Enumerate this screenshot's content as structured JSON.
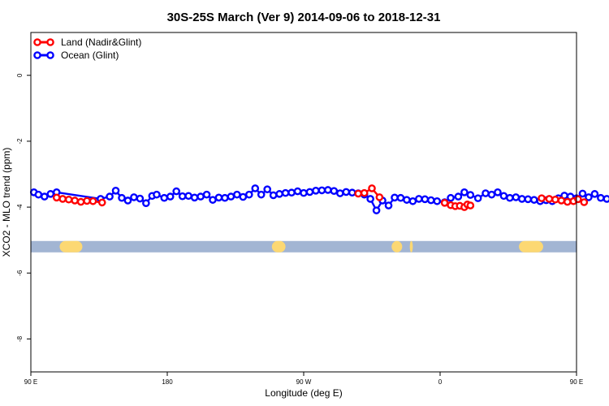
{
  "chart_data": {
    "type": "line",
    "title": "30S-25S March (Ver 9)   2014-09-06 to 2018-12-31",
    "xlabel": "Longitude (deg E)",
    "ylabel": "XCO2 - MLO trend (ppm)",
    "xlim": [
      90,
      450
    ],
    "ylim": [
      -9,
      1.3
    ],
    "x_ticks": [
      {
        "value": 90,
        "label": "90 E"
      },
      {
        "value": 180,
        "label": "180"
      },
      {
        "value": 270,
        "label": "90 W"
      },
      {
        "value": 360,
        "label": "0"
      },
      {
        "value": 450,
        "label": "90 E"
      },
      {
        "value": 540,
        "label": "180"
      }
    ],
    "y_ticks": [
      {
        "value": 0,
        "label": "0"
      },
      {
        "value": -2,
        "label": "-2"
      },
      {
        "value": -4,
        "label": "-4"
      },
      {
        "value": -6,
        "label": "-6"
      },
      {
        "value": -8,
        "label": "-8"
      }
    ],
    "legend": {
      "position": "top-left"
    },
    "colors": {
      "land": "#ff0000",
      "ocean": "#0000ff",
      "band_ocean": "#a2b5d3",
      "band_land": "#fcd873"
    },
    "land_mask_band": {
      "y": -5.2,
      "land_segments": [
        [
          109,
          124
        ],
        [
          249,
          258
        ],
        [
          328,
          335
        ],
        [
          340,
          342
        ],
        [
          412,
          428
        ]
      ]
    },
    "series": [
      {
        "name": "Land (Nadir&Glint)",
        "color": "#ff0000",
        "x": [
          107,
          111,
          115,
          119,
          123,
          127,
          131,
          137,
          306,
          310,
          315,
          320,
          363,
          367,
          370,
          373,
          376,
          378,
          380,
          427,
          432,
          436,
          440,
          444,
          448,
          451,
          455
        ],
        "y": [
          -3.71,
          -3.75,
          -3.77,
          -3.8,
          -3.84,
          -3.81,
          -3.82,
          -3.86,
          -3.59,
          -3.57,
          -3.43,
          -3.7,
          -3.87,
          -3.94,
          -3.97,
          -3.96,
          -4.0,
          -3.92,
          -3.95,
          -3.73,
          -3.75,
          -3.77,
          -3.8,
          -3.84,
          -3.82,
          -3.76,
          -3.85
        ]
      },
      {
        "name": "Ocean (Glint)",
        "color": "#0000ff",
        "x": [
          92,
          95,
          99,
          103,
          107,
          136,
          142,
          146,
          150,
          154,
          158,
          162,
          166,
          170,
          173,
          178,
          182,
          186,
          190,
          194,
          198,
          202,
          206,
          210,
          214,
          218,
          222,
          226,
          230,
          234,
          238,
          242,
          246,
          250,
          254,
          258,
          262,
          266,
          270,
          274,
          278,
          282,
          286,
          290,
          294,
          298,
          302,
          306,
          310,
          314,
          318,
          322,
          326,
          330,
          334,
          338,
          342,
          346,
          350,
          354,
          358,
          363,
          367,
          372,
          376,
          380,
          385,
          390,
          394,
          398,
          402,
          406,
          410,
          414,
          418,
          422,
          426,
          430,
          434,
          438,
          442,
          446,
          450,
          454,
          458,
          462,
          466,
          470
        ],
        "y": [
          -3.55,
          -3.62,
          -3.68,
          -3.6,
          -3.55,
          -3.75,
          -3.68,
          -3.5,
          -3.72,
          -3.8,
          -3.7,
          -3.74,
          -3.88,
          -3.66,
          -3.62,
          -3.72,
          -3.68,
          -3.52,
          -3.67,
          -3.66,
          -3.71,
          -3.68,
          -3.62,
          -3.78,
          -3.71,
          -3.72,
          -3.68,
          -3.62,
          -3.69,
          -3.62,
          -3.43,
          -3.62,
          -3.46,
          -3.64,
          -3.6,
          -3.57,
          -3.56,
          -3.52,
          -3.57,
          -3.54,
          -3.5,
          -3.49,
          -3.48,
          -3.51,
          -3.58,
          -3.54,
          -3.56,
          -3.58,
          -3.62,
          -3.75,
          -4.1,
          -3.8,
          -3.95,
          -3.71,
          -3.72,
          -3.78,
          -3.82,
          -3.75,
          -3.76,
          -3.79,
          -3.82,
          -3.85,
          -3.72,
          -3.68,
          -3.55,
          -3.63,
          -3.73,
          -3.58,
          -3.62,
          -3.55,
          -3.66,
          -3.72,
          -3.7,
          -3.75,
          -3.76,
          -3.78,
          -3.82,
          -3.79,
          -3.82,
          -3.73,
          -3.65,
          -3.68,
          -3.73,
          -3.59,
          -3.7,
          -3.6,
          -3.72,
          -3.75
        ]
      }
    ]
  }
}
